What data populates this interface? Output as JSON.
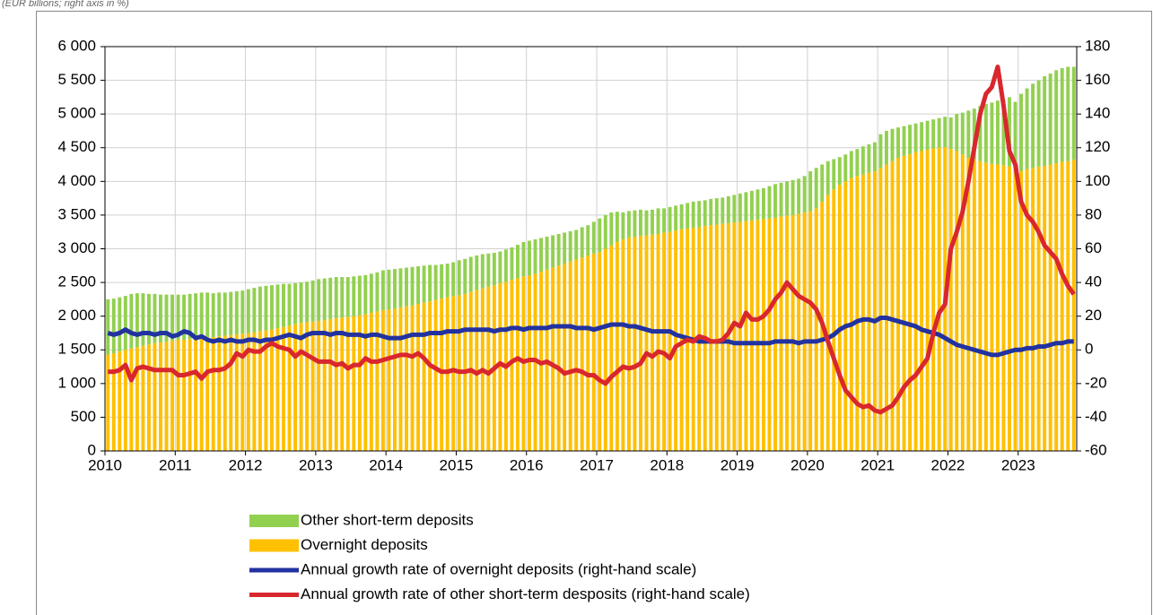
{
  "chart_data": {
    "type": "bar",
    "stacked": true,
    "subtitle": "(EUR billions; right axis in %)",
    "categories": [
      "2010",
      null,
      null,
      null,
      null,
      null,
      null,
      null,
      null,
      null,
      null,
      null,
      "2011",
      null,
      null,
      null,
      null,
      null,
      null,
      null,
      null,
      null,
      null,
      null,
      "2012",
      null,
      null,
      null,
      null,
      null,
      null,
      null,
      null,
      null,
      null,
      null,
      "2013",
      null,
      null,
      null,
      null,
      null,
      null,
      null,
      null,
      null,
      null,
      null,
      "2014",
      null,
      null,
      null,
      null,
      null,
      null,
      null,
      null,
      null,
      null,
      null,
      "2015",
      null,
      null,
      null,
      null,
      null,
      null,
      null,
      null,
      null,
      null,
      null,
      "2016",
      null,
      null,
      null,
      null,
      null,
      null,
      null,
      null,
      null,
      null,
      null,
      "2017",
      null,
      null,
      null,
      null,
      null,
      null,
      null,
      null,
      null,
      null,
      null,
      "2018",
      null,
      null,
      null,
      null,
      null,
      null,
      null,
      null,
      null,
      null,
      null,
      "2019",
      null,
      null,
      null,
      null,
      null,
      null,
      null,
      null,
      null,
      null,
      null,
      "2020",
      null,
      null,
      null,
      null,
      null,
      null,
      null,
      null,
      null,
      null,
      null,
      "2021",
      null,
      null,
      null,
      null,
      null,
      null,
      null,
      null,
      null,
      null,
      null,
      "2022",
      null,
      null,
      null,
      null,
      null,
      null,
      null,
      null,
      null,
      null,
      null,
      "2023",
      null,
      null,
      null,
      null,
      null,
      null,
      null,
      null,
      null
    ],
    "series": [
      {
        "name": "Other short-term deposits",
        "type": "bar",
        "color": "#92d050",
        "values": [
          820,
          810,
          800,
          800,
          810,
          800,
          780,
          750,
          730,
          710,
          700,
          680,
          670,
          670,
          670,
          670,
          670,
          670,
          650,
          650,
          640,
          640,
          640,
          640,
          650,
          660,
          660,
          660,
          660,
          650,
          640,
          620,
          610,
          600,
          600,
          610,
          620,
          620,
          610,
          610,
          600,
          590,
          590,
          590,
          580,
          580,
          580,
          590,
          590,
          590,
          580,
          570,
          570,
          560,
          550,
          540,
          520,
          510,
          500,
          500,
          520,
          520,
          520,
          510,
          510,
          490,
          480,
          470,
          480,
          480,
          500,
          510,
          520,
          510,
          500,
          490,
          480,
          470,
          460,
          450,
          440,
          450,
          450,
          470,
          500,
          500,
          490,
          450,
          400,
          390,
          390,
          390,
          370,
          370,
          380,
          360,
          370,
          370,
          370,
          380,
          390,
          390,
          380,
          390,
          390,
          390,
          400,
          410,
          420,
          430,
          440,
          450,
          460,
          480,
          500,
          500,
          510,
          520,
          520,
          540,
          590,
          600,
          550,
          500,
          450,
          410,
          400,
          400,
          400,
          420,
          420,
          430,
          500,
          500,
          480,
          450,
          440,
          440,
          430,
          430,
          430,
          430,
          440,
          450,
          470,
          550,
          620,
          700,
          750,
          820,
          870,
          910,
          950,
          980,
          1030,
          980,
          1150,
          1200,
          1250,
          1280,
          1330,
          1350,
          1380,
          1390,
          1400,
          1380
        ]
      },
      {
        "name": "Overnight deposits",
        "type": "bar",
        "color": "#ffc000",
        "values": [
          1430,
          1450,
          1480,
          1500,
          1520,
          1540,
          1560,
          1580,
          1600,
          1610,
          1620,
          1640,
          1650,
          1650,
          1660,
          1670,
          1680,
          1680,
          1690,
          1700,
          1710,
          1720,
          1730,
          1740,
          1750,
          1760,
          1780,
          1790,
          1800,
          1820,
          1840,
          1860,
          1880,
          1900,
          1910,
          1920,
          1930,
          1940,
          1960,
          1970,
          1980,
          1990,
          2000,
          2010,
          2030,
          2050,
          2070,
          2090,
          2100,
          2110,
          2130,
          2150,
          2160,
          2180,
          2200,
          2220,
          2240,
          2260,
          2280,
          2300,
          2310,
          2330,
          2360,
          2390,
          2410,
          2440,
          2460,
          2490,
          2510,
          2540,
          2560,
          2590,
          2600,
          2630,
          2660,
          2690,
          2720,
          2750,
          2780,
          2810,
          2840,
          2870,
          2900,
          2930,
          2950,
          3000,
          3050,
          3100,
          3140,
          3170,
          3180,
          3190,
          3200,
          3210,
          3220,
          3240,
          3250,
          3270,
          3290,
          3300,
          3310,
          3320,
          3340,
          3350,
          3360,
          3370,
          3380,
          3390,
          3400,
          3410,
          3420,
          3430,
          3440,
          3450,
          3460,
          3480,
          3490,
          3500,
          3520,
          3540,
          3560,
          3600,
          3700,
          3800,
          3880,
          3950,
          4000,
          4050,
          4080,
          4100,
          4130,
          4150,
          4200,
          4250,
          4300,
          4350,
          4380,
          4400,
          4430,
          4450,
          4470,
          4490,
          4500,
          4510,
          4480,
          4450,
          4400,
          4350,
          4330,
          4300,
          4280,
          4260,
          4250,
          4240,
          4220,
          4200,
          4150,
          4180,
          4200,
          4220,
          4230,
          4250,
          4270,
          4290,
          4300,
          4320
        ]
      },
      {
        "name": "Annual growth rate of overnight deposits (right-hand scale)",
        "type": "line",
        "axis": "y2",
        "color": "#2232a0",
        "values": [
          10,
          9,
          10,
          12,
          10,
          9,
          10,
          10,
          9,
          10,
          10,
          8,
          9,
          11,
          10,
          7,
          8,
          6,
          5,
          6,
          5,
          6,
          5,
          5,
          6,
          6,
          5,
          6,
          6,
          7,
          8,
          9,
          8,
          7,
          9,
          10,
          10,
          10,
          9,
          10,
          10,
          9,
          9,
          9,
          8,
          9,
          9,
          8,
          7,
          7,
          7,
          8,
          9,
          9,
          9,
          10,
          10,
          10,
          11,
          11,
          11,
          12,
          12,
          12,
          12,
          12,
          11,
          12,
          12,
          13,
          13,
          12,
          13,
          13,
          13,
          13,
          14,
          14,
          14,
          14,
          13,
          13,
          13,
          12,
          13,
          14,
          15,
          15,
          15,
          14,
          14,
          13,
          12,
          11,
          11,
          11,
          11,
          9,
          8,
          7,
          6,
          5,
          5,
          5,
          5,
          5,
          5,
          4,
          4,
          4,
          4,
          4,
          4,
          4,
          5,
          5,
          5,
          5,
          4,
          5,
          5,
          5,
          6,
          7,
          9,
          12,
          14,
          15,
          17,
          18,
          18,
          17,
          19,
          19,
          18,
          17,
          16,
          15,
          14,
          12,
          11,
          10,
          9,
          7,
          5,
          3,
          2,
          1,
          0,
          -1,
          -2,
          -3,
          -3,
          -2,
          -1,
          0,
          0,
          1,
          1,
          2,
          2,
          3,
          4,
          4,
          5,
          5
        ]
      },
      {
        "name": "Annual growth rate of other short-term desposits (right-hand scale)",
        "type": "line",
        "axis": "y2",
        "color": "#d9272e",
        "values": [
          -13,
          -13,
          -12,
          -9,
          -18,
          -11,
          -10,
          -11,
          -12,
          -12,
          -12,
          -12,
          -15,
          -15,
          -14,
          -13,
          -17,
          -13,
          -12,
          -12,
          -11,
          -8,
          -2,
          -4,
          0,
          -1,
          -1,
          2,
          4,
          2,
          1,
          0,
          -4,
          -1,
          -3,
          -5,
          -7,
          -7,
          -7,
          -9,
          -8,
          -11,
          -9,
          -9,
          -5,
          -7,
          -7,
          -6,
          -5,
          -4,
          -3,
          -3,
          -4,
          -2,
          -5,
          -9,
          -11,
          -13,
          -13,
          -12,
          -13,
          -13,
          -12,
          -14,
          -12,
          -14,
          -11,
          -8,
          -10,
          -7,
          -5,
          -7,
          -6,
          -6,
          -8,
          -7,
          -9,
          -11,
          -14,
          -13,
          -12,
          -13,
          -15,
          -15,
          -18,
          -20,
          -16,
          -13,
          -10,
          -11,
          -10,
          -8,
          -2,
          -4,
          -1,
          -2,
          -5,
          2,
          4,
          6,
          5,
          8,
          7,
          5,
          5,
          6,
          10,
          16,
          14,
          22,
          18,
          18,
          20,
          24,
          30,
          34,
          40,
          36,
          32,
          30,
          28,
          24,
          16,
          5,
          -5,
          -15,
          -24,
          -28,
          -32,
          -34,
          -33,
          -36,
          -37,
          -35,
          -33,
          -28,
          -22,
          -18,
          -15,
          -10,
          -5,
          10,
          22,
          27,
          60,
          70,
          82,
          100,
          120,
          140,
          152,
          156,
          168,
          145,
          118,
          110,
          88,
          80,
          76,
          70,
          62,
          58,
          54,
          45,
          38,
          33
        ]
      }
    ],
    "ylim": [
      0,
      6000
    ],
    "yticks": [
      0,
      500,
      {
        "value": 1000,
        "label": "1 000"
      },
      {
        "value": 1500,
        "label": "1 500"
      },
      {
        "value": 2000,
        "label": "2 000"
      },
      {
        "value": 2500,
        "label": "2 500"
      },
      {
        "value": 3000,
        "label": "3 000"
      },
      {
        "value": 3500,
        "label": "3 500"
      },
      {
        "value": 4000,
        "label": "4 000"
      },
      {
        "value": 4500,
        "label": "4 500"
      },
      {
        "value": 5000,
        "label": "5 000"
      },
      {
        "value": 5500,
        "label": "5 500"
      },
      {
        "value": 6000,
        "label": "6 000"
      }
    ],
    "y2lim": [
      -60,
      180
    ],
    "y2ticks": [
      -60,
      -40,
      -20,
      0,
      20,
      40,
      60,
      80,
      100,
      120,
      140,
      160,
      180
    ],
    "grid": true,
    "legend": "bottom"
  }
}
